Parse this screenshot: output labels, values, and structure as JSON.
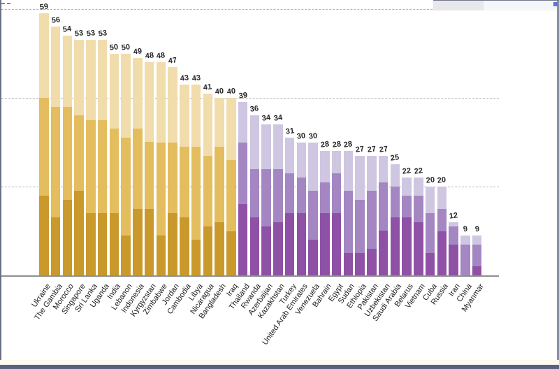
{
  "window": {
    "frame_color": "#6b7186",
    "bottom_bar_color": "#5b6180",
    "cream_strip_color": "#fcfaf1",
    "topright_block_color": "#e8e8eb",
    "blue_square_color": "#5577d9",
    "red_dash_color": "#e25f4a"
  },
  "chart_data": {
    "type": "bar",
    "stacked": true,
    "title": "",
    "xlabel": "",
    "ylabel": "",
    "ylim": [
      0,
      62
    ],
    "gridline_values": [
      60,
      40,
      20
    ],
    "grid_style": "horizontal dashed gray, solid baseline at 0, no y-axis tick labels",
    "legend": "none",
    "value_labels_shown": true,
    "groups": {
      "gold": {
        "light": "#f1dcab",
        "medium": "#e3bd5e",
        "dark": "#c9992b"
      },
      "purple": {
        "light": "#cfc6e2",
        "medium": "#a487c2",
        "dark": "#8f51a5"
      }
    },
    "series_note": "each bar = three stacked segments (light top, medium middle, dark bottom); printed label = total",
    "bars": [
      {
        "country": "Ukraine",
        "group": "gold",
        "total": 59,
        "light": 19,
        "medium": 22,
        "dark": 18
      },
      {
        "country": "The Gambia",
        "group": "gold",
        "total": 56,
        "light": 18,
        "medium": 25,
        "dark": 13
      },
      {
        "country": "Morocco",
        "group": "gold",
        "total": 54,
        "light": 16,
        "medium": 21,
        "dark": 17
      },
      {
        "country": "Singapore",
        "group": "gold",
        "total": 53,
        "light": 17,
        "medium": 17,
        "dark": 19
      },
      {
        "country": "Sri Lanka",
        "group": "gold",
        "total": 53,
        "light": 18,
        "medium": 21,
        "dark": 14
      },
      {
        "country": "Uganda",
        "group": "gold",
        "total": 53,
        "light": 18,
        "medium": 21,
        "dark": 14
      },
      {
        "country": "India",
        "group": "gold",
        "total": 50,
        "light": 17,
        "medium": 19,
        "dark": 14
      },
      {
        "country": "Lebanon",
        "group": "gold",
        "total": 50,
        "light": 19,
        "medium": 22,
        "dark": 9
      },
      {
        "country": "Indonesia",
        "group": "gold",
        "total": 49,
        "light": 16,
        "medium": 18,
        "dark": 15
      },
      {
        "country": "Kyrgyzstan",
        "group": "gold",
        "total": 48,
        "light": 18,
        "medium": 15,
        "dark": 15
      },
      {
        "country": "Zimbabwe",
        "group": "gold",
        "total": 48,
        "light": 18,
        "medium": 21,
        "dark": 9
      },
      {
        "country": "Jordan",
        "group": "gold",
        "total": 47,
        "light": 17,
        "medium": 16,
        "dark": 14
      },
      {
        "country": "Cambodia",
        "group": "gold",
        "total": 43,
        "light": 14,
        "medium": 16,
        "dark": 13
      },
      {
        "country": "Libya",
        "group": "gold",
        "total": 43,
        "light": 14,
        "medium": 21,
        "dark": 8
      },
      {
        "country": "Nicaragua",
        "group": "gold",
        "total": 41,
        "light": 14,
        "medium": 16,
        "dark": 11
      },
      {
        "country": "Bangladesh",
        "group": "gold",
        "total": 40,
        "light": 11,
        "medium": 17,
        "dark": 12
      },
      {
        "country": "Iraq",
        "group": "gold",
        "total": 40,
        "light": 14,
        "medium": 16,
        "dark": 10
      },
      {
        "country": "Thailand",
        "group": "purple",
        "total": 39,
        "light": 9,
        "medium": 14,
        "dark": 16
      },
      {
        "country": "Rwanda",
        "group": "purple",
        "total": 36,
        "light": 12,
        "medium": 11,
        "dark": 13
      },
      {
        "country": "Azerbaijan",
        "group": "purple",
        "total": 34,
        "light": 10,
        "medium": 13,
        "dark": 11
      },
      {
        "country": "Kazakhstan",
        "group": "purple",
        "total": 34,
        "light": 10,
        "medium": 12,
        "dark": 12
      },
      {
        "country": "Turkey",
        "group": "purple",
        "total": 31,
        "light": 8,
        "medium": 9,
        "dark": 14
      },
      {
        "country": "United Arab Emirates",
        "group": "purple",
        "total": 30,
        "light": 8,
        "medium": 8,
        "dark": 14
      },
      {
        "country": "Venezuela",
        "group": "purple",
        "total": 30,
        "light": 11,
        "medium": 11,
        "dark": 8
      },
      {
        "country": "Bahrain",
        "group": "purple",
        "total": 28,
        "light": 7,
        "medium": 7,
        "dark": 14
      },
      {
        "country": "Egypt",
        "group": "purple",
        "total": 28,
        "light": 5,
        "medium": 9,
        "dark": 14
      },
      {
        "country": "Sudan",
        "group": "purple",
        "total": 28,
        "light": 9,
        "medium": 14,
        "dark": 5
      },
      {
        "country": "Ethiopia",
        "group": "purple",
        "total": 27,
        "light": 10,
        "medium": 12,
        "dark": 5
      },
      {
        "country": "Pakistan",
        "group": "purple",
        "total": 27,
        "light": 8,
        "medium": 13,
        "dark": 6
      },
      {
        "country": "Uzbekistan",
        "group": "purple",
        "total": 27,
        "light": 6,
        "medium": 11,
        "dark": 10
      },
      {
        "country": "Saudi Arabia",
        "group": "purple",
        "total": 25,
        "light": 5,
        "medium": 7,
        "dark": 13
      },
      {
        "country": "Belarus",
        "group": "purple",
        "total": 22,
        "light": 4,
        "medium": 5,
        "dark": 13
      },
      {
        "country": "Vietnam",
        "group": "purple",
        "total": 22,
        "light": 4,
        "medium": 6,
        "dark": 12
      },
      {
        "country": "Cuba",
        "group": "purple",
        "total": 20,
        "light": 6,
        "medium": 9,
        "dark": 5
      },
      {
        "country": "Russia",
        "group": "purple",
        "total": 20,
        "light": 5,
        "medium": 5,
        "dark": 10
      },
      {
        "country": "Iran",
        "group": "purple",
        "total": 12,
        "light": 1,
        "medium": 4,
        "dark": 7
      },
      {
        "country": "China",
        "group": "purple",
        "total": 9,
        "light": 2,
        "medium": 7,
        "dark": 0
      },
      {
        "country": "Myanmar",
        "group": "purple",
        "total": 9,
        "light": 2,
        "medium": 5,
        "dark": 2
      }
    ]
  }
}
